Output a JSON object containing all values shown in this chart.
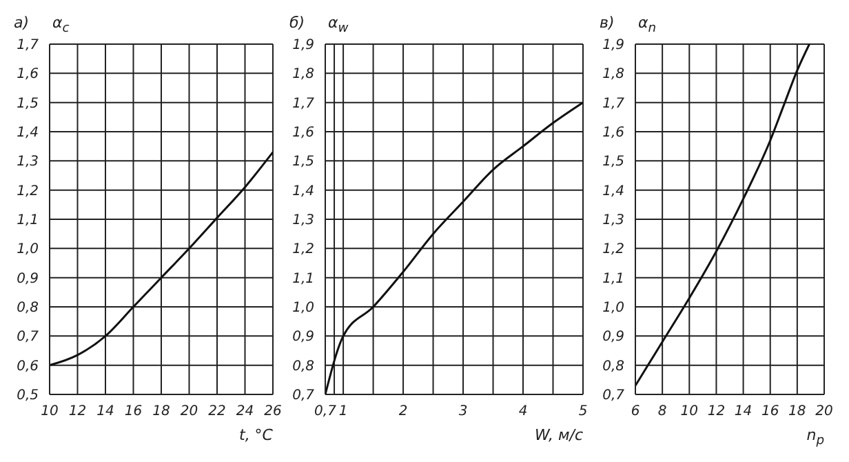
{
  "chart_data": [
    {
      "type": "line",
      "title": "а)",
      "ylabel": "α$_{c}$",
      "xlabel": "t, °C",
      "color": "#111111",
      "grid": true,
      "x": [
        10,
        12,
        14,
        16,
        18,
        20,
        22,
        24,
        26
      ],
      "values": [
        0.6,
        0.635,
        0.7,
        0.8,
        0.9,
        1.0,
        1.105,
        1.21,
        1.33
      ],
      "xlim": [
        10,
        26
      ],
      "xticks": [
        10,
        12,
        14,
        16,
        18,
        20,
        22,
        24,
        26
      ],
      "ylim": [
        0.5,
        1.7
      ],
      "yticks": [
        {
          "value": 0.5,
          "label": "0,5"
        },
        {
          "value": 0.6,
          "label": "0,6"
        },
        {
          "value": 0.7,
          "label": "0,7"
        },
        {
          "value": 0.8,
          "label": "0,8"
        },
        {
          "value": 0.9,
          "label": "0,9"
        },
        {
          "value": 1.0,
          "label": "1,0"
        },
        {
          "value": 1.1,
          "label": "1,1"
        },
        {
          "value": 1.2,
          "label": "1,2"
        },
        {
          "value": 1.3,
          "label": "1,3"
        },
        {
          "value": 1.4,
          "label": "1,4"
        },
        {
          "value": 1.5,
          "label": "1,5"
        },
        {
          "value": 1.6,
          "label": "1,6"
        },
        {
          "value": 1.7,
          "label": "1,7"
        }
      ]
    },
    {
      "type": "line",
      "title": "б)",
      "ylabel": "α$_{w}$",
      "xlabel": "W, м/с",
      "color": "#111111",
      "grid": true,
      "x": [
        0.7,
        1,
        1.5,
        2,
        2.5,
        3,
        3.5,
        4,
        4.5,
        5
      ],
      "values": [
        0.7,
        0.9,
        1.0,
        1.12,
        1.25,
        1.36,
        1.47,
        1.55,
        1.63,
        1.7
      ],
      "xlim": [
        0.7,
        5
      ],
      "xticks": [
        {
          "value": 0.7,
          "label": "0,7"
        },
        {
          "value": 0.85,
          "label": null
        },
        1,
        {
          "value": 1.5,
          "label": null
        },
        2,
        {
          "value": 2.5,
          "label": null
        },
        3,
        {
          "value": 3.5,
          "label": null
        },
        4,
        {
          "value": 4.5,
          "label": null
        },
        5
      ],
      "ylim": [
        0.7,
        1.9
      ],
      "yticks": [
        {
          "value": 0.7,
          "label": "0,7"
        },
        {
          "value": 0.8,
          "label": "0,8"
        },
        {
          "value": 0.9,
          "label": "0,9"
        },
        {
          "value": 1.0,
          "label": "1,0"
        },
        {
          "value": 1.1,
          "label": "1,1"
        },
        {
          "value": 1.2,
          "label": "1,2"
        },
        {
          "value": 1.3,
          "label": "1,3"
        },
        {
          "value": 1.4,
          "label": "1,4"
        },
        {
          "value": 1.5,
          "label": "1,5"
        },
        {
          "value": 1.6,
          "label": "1,6"
        },
        {
          "value": 1.7,
          "label": "1,7"
        },
        {
          "value": 1.8,
          "label": "1,8"
        },
        {
          "value": 1.9,
          "label": "1,9"
        }
      ]
    },
    {
      "type": "line",
      "title": "в)",
      "ylabel": "α$_{n}$",
      "xlabel": "n$_{р}$",
      "color": "#111111",
      "grid": true,
      "x": [
        6,
        8,
        10,
        12,
        14,
        16,
        17,
        18,
        18.9
      ],
      "values": [
        0.73,
        0.88,
        1.03,
        1.19,
        1.37,
        1.57,
        1.69,
        1.81,
        1.9
      ],
      "xlim": [
        6,
        20
      ],
      "xticks": [
        6,
        8,
        10,
        12,
        14,
        16,
        18,
        20
      ],
      "ylim": [
        0.7,
        1.9
      ],
      "yticks": [
        {
          "value": 0.7,
          "label": "0,7"
        },
        {
          "value": 0.8,
          "label": "0,8"
        },
        {
          "value": 0.9,
          "label": "0,9"
        },
        {
          "value": 1.0,
          "label": "1,0"
        },
        {
          "value": 1.1,
          "label": "1,1"
        },
        {
          "value": 1.2,
          "label": "1,2"
        },
        {
          "value": 1.3,
          "label": "1,3"
        },
        {
          "value": 1.4,
          "label": "1,4"
        },
        {
          "value": 1.5,
          "label": "1,5"
        },
        {
          "value": 1.6,
          "label": "1,6"
        },
        {
          "value": 1.7,
          "label": "1,7"
        },
        {
          "value": 1.8,
          "label": "1,8"
        },
        {
          "value": 1.9,
          "label": "1,9"
        }
      ]
    }
  ]
}
